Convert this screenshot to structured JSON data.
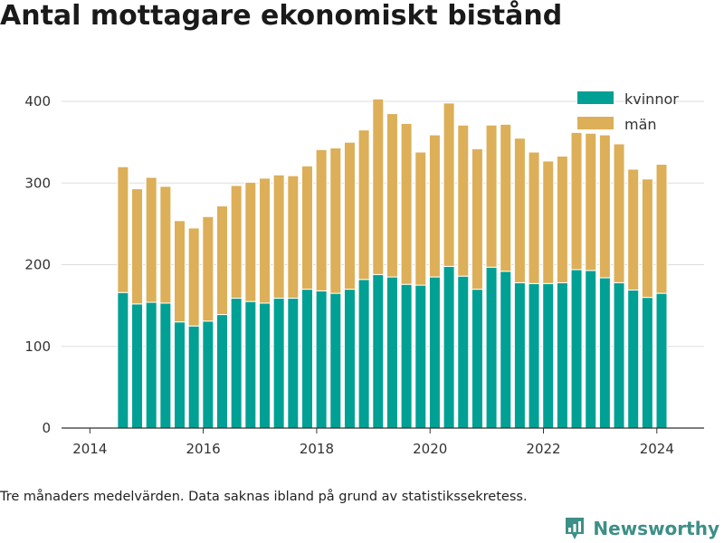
{
  "title": "Antal mottagare ekonomiskt bistånd",
  "footnote": "Tre månaders medelvärden. Data saknas ibland på grund av statistikssekretess.",
  "brand": {
    "name": "Newsworthy",
    "icon": "newsworthy-logo-icon",
    "color": "#3d8f87"
  },
  "colors": {
    "kvinnor": "#00a094",
    "man": "#dcaf58",
    "grid": "#dddddd",
    "axis": "#333333"
  },
  "chart_data": {
    "type": "bar",
    "stacked": true,
    "title": "Antal mottagare ekonomiskt bistånd",
    "xlabel": "",
    "ylabel": "",
    "x_ticks": [
      "2014",
      "2016",
      "2018",
      "2020",
      "2022",
      "2024"
    ],
    "y_ticks": [
      "0",
      "100",
      "200",
      "300",
      "400"
    ],
    "ylim": [
      0,
      420
    ],
    "xlim": [
      "2013-07",
      "2024-11"
    ],
    "grid": true,
    "legend_position": "top-right",
    "x": [
      "2014-08",
      "2014-11",
      "2015-02",
      "2015-05",
      "2015-08",
      "2015-11",
      "2016-02",
      "2016-05",
      "2016-08",
      "2016-11",
      "2017-02",
      "2017-05",
      "2017-08",
      "2017-11",
      "2018-02",
      "2018-05",
      "2018-08",
      "2018-11",
      "2019-02",
      "2019-05",
      "2019-08",
      "2019-11",
      "2020-02",
      "2020-05",
      "2020-08",
      "2020-11",
      "2021-02",
      "2021-05",
      "2021-08",
      "2021-11",
      "2022-02",
      "2022-05",
      "2022-08",
      "2022-11",
      "2023-02",
      "2023-05",
      "2023-08",
      "2023-11",
      "2024-02"
    ],
    "series": [
      {
        "name": "kvinnor",
        "color": "#00a094",
        "values": [
          166,
          152,
          154,
          153,
          130,
          125,
          131,
          139,
          159,
          155,
          153,
          159,
          159,
          170,
          168,
          165,
          170,
          182,
          188,
          185,
          176,
          175,
          185,
          198,
          186,
          170,
          197,
          192,
          178,
          177,
          177,
          178,
          194,
          193,
          184,
          178,
          169,
          160,
          165
        ]
      },
      {
        "name": "män",
        "color": "#dcaf58",
        "values": [
          154,
          141,
          153,
          143,
          124,
          120,
          128,
          133,
          138,
          146,
          153,
          151,
          150,
          151,
          173,
          178,
          180,
          183,
          215,
          200,
          197,
          163,
          174,
          200,
          185,
          172,
          174,
          180,
          177,
          161,
          150,
          155,
          168,
          168,
          175,
          170,
          148,
          145,
          158
        ]
      }
    ]
  }
}
